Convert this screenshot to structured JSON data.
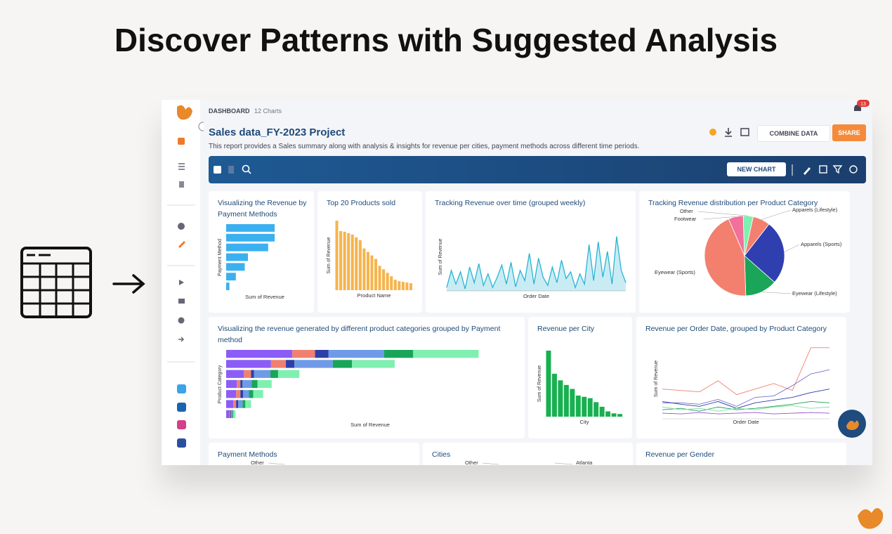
{
  "heading": "Discover Patterns with Suggested Analysis",
  "header": {
    "section": "DASHBOARD",
    "count": "12 Charts",
    "notifications": "13",
    "title": "Sales data_FY-2023 Project",
    "description": "This report provides a Sales summary along with analysis & insights for revenue per cities, payment methods across different time periods.",
    "combine": "COMBINE DATA",
    "share": "SHARE",
    "new_chart": "NEW CHART"
  },
  "widgets": [
    {
      "type": "hbar",
      "title": "Visualizing the Revenue by Payment Methods",
      "y_label": "Payment Method",
      "x_label": "Sum of Revenue",
      "color": "#3bb0f0",
      "xlim": [
        0,
        100
      ],
      "values": [
        60,
        60,
        52,
        27,
        23,
        12,
        4
      ]
    },
    {
      "type": "vbar",
      "title": "Top 20 Products sold",
      "y_label": "Sum of Revenue",
      "x_label": "Product Name",
      "color": "#f6b44c",
      "ylim": [
        0,
        100
      ],
      "values": [
        100,
        85,
        84,
        82,
        80,
        76,
        72,
        60,
        55,
        50,
        45,
        35,
        30,
        25,
        20,
        15,
        13,
        12,
        11,
        10
      ]
    },
    {
      "type": "area",
      "title": "Tracking Revenue over time (grouped weekly)",
      "y_label": "Sum of Revenue",
      "x_label": "Order Date",
      "color": "#29b4d4",
      "ylim": [
        0,
        100
      ],
      "values": [
        5,
        30,
        10,
        28,
        3,
        35,
        12,
        40,
        8,
        25,
        5,
        20,
        38,
        10,
        42,
        6,
        30,
        15,
        55,
        10,
        48,
        20,
        8,
        35,
        12,
        45,
        18,
        28,
        5,
        25,
        10,
        68,
        15,
        72,
        20,
        58,
        10,
        80,
        30,
        12
      ]
    },
    {
      "type": "pie",
      "title": "Tracking Revenue distribution per Product Category",
      "categories": [
        "Apparels (Lifestyle)",
        "Apparels (Sports)",
        "Eyewear (Lifestyle)",
        "Eyewear (Sports)",
        "Footwear",
        "Other"
      ],
      "values": [
        7,
        26,
        13,
        44,
        6,
        4
      ],
      "colors": [
        "#f3806f",
        "#2f3fb0",
        "#1aa558",
        "#f3806f",
        "#f2709a",
        "#7ff0b0"
      ]
    },
    {
      "type": "stacked-hbar",
      "title": "Visualizing the revenue generated by different product categories grouped by Payment method",
      "y_label": "Product Category",
      "x_label": "Sum of Revenue",
      "xlim": [
        0,
        400
      ],
      "series": [
        {
          "color": "#8b5cf6",
          "values": [
            93,
            63,
            25,
            15,
            14,
            10,
            5
          ]
        },
        {
          "color": "#f08070",
          "values": [
            32,
            21,
            10,
            5,
            6,
            4,
            1
          ]
        },
        {
          "color": "#2b3fa8",
          "values": [
            19,
            12,
            4,
            3,
            4,
            3,
            1
          ]
        },
        {
          "color": "#6f9ae8",
          "values": [
            78,
            54,
            23,
            13,
            8,
            6,
            2
          ]
        },
        {
          "color": "#18a558",
          "values": [
            41,
            27,
            11,
            8,
            6,
            4,
            1
          ]
        },
        {
          "color": "#7ff0b0",
          "values": [
            92,
            60,
            30,
            20,
            14,
            8,
            3
          ]
        }
      ]
    },
    {
      "type": "vbar",
      "title": "Revenue per City",
      "y_label": "Sum of Revenue",
      "x_label": "City",
      "color": "#18b050",
      "ylim": [
        0,
        100
      ],
      "values": [
        100,
        65,
        55,
        48,
        42,
        32,
        30,
        28,
        22,
        15,
        8,
        5,
        4
      ]
    },
    {
      "type": "multi-line",
      "title": "Revenue per Order Date, grouped by Product Category",
      "y_label": "Sum of Revenue",
      "x_label": "Order Date",
      "ylim": [
        0,
        110
      ],
      "series": [
        {
          "color": "#f08070",
          "values": [
            40,
            38,
            36,
            52,
            32,
            40,
            48,
            38,
            100,
            100
          ]
        },
        {
          "color": "#7b6fd0",
          "values": [
            20,
            20,
            18,
            25,
            15,
            28,
            30,
            45,
            62,
            68
          ]
        },
        {
          "color": "#2b3fa8",
          "values": [
            22,
            18,
            15,
            22,
            12,
            20,
            24,
            28,
            35,
            40
          ]
        },
        {
          "color": "#18a558",
          "values": [
            10,
            12,
            8,
            14,
            10,
            12,
            15,
            18,
            22,
            20
          ]
        },
        {
          "color": "#7fe0a0",
          "values": [
            14,
            10,
            12,
            8,
            12,
            10,
            14,
            16,
            12,
            14
          ]
        },
        {
          "color": "#9b4fd0",
          "values": [
            5,
            4,
            6,
            4,
            5,
            6,
            4,
            5,
            6,
            5
          ]
        }
      ]
    },
    {
      "type": "stub",
      "title": "Payment Methods",
      "labels": [
        "Other"
      ]
    },
    {
      "type": "stub",
      "title": "Cities",
      "labels": [
        "Other",
        "Atlanta"
      ]
    },
    {
      "type": "stub",
      "title": "Revenue per Gender",
      "labels": []
    }
  ]
}
